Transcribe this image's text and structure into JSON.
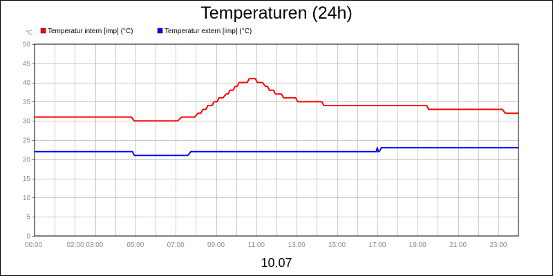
{
  "chart_data": {
    "type": "line",
    "title": "Temperaturen (24h)",
    "xlabel": "10.07",
    "ylabel": "°C",
    "ylim": [
      0,
      50
    ],
    "y_ticks": [
      "0",
      "5",
      "10",
      "15",
      "20",
      "25",
      "30",
      "35",
      "40",
      "45",
      "50"
    ],
    "x_tick_labels": [
      "00:00",
      "02:00 03:00",
      "05:00",
      "07:00",
      "09:00",
      "11:00",
      "13:00",
      "15:00",
      "17:00",
      "19:00",
      "21:00",
      "23:00"
    ],
    "x_tick_hours": [
      0,
      2.5,
      5,
      7,
      9,
      11,
      13,
      15,
      17,
      19,
      21,
      23
    ],
    "xlim_hours": [
      0,
      24
    ],
    "grid": true,
    "legend_position": "top-left",
    "series": [
      {
        "name": "Temperatur intern [imp] (°C)",
        "color": "#ff0000",
        "points": [
          [
            0,
            31
          ],
          [
            4.8,
            31
          ],
          [
            4.95,
            30
          ],
          [
            7.1,
            30
          ],
          [
            7.3,
            31
          ],
          [
            7.95,
            31
          ],
          [
            8.1,
            32
          ],
          [
            8.25,
            32
          ],
          [
            8.35,
            33
          ],
          [
            8.5,
            33
          ],
          [
            8.6,
            34
          ],
          [
            8.8,
            34
          ],
          [
            8.9,
            35
          ],
          [
            9.05,
            35
          ],
          [
            9.15,
            36
          ],
          [
            9.35,
            36
          ],
          [
            9.5,
            37
          ],
          [
            9.6,
            37
          ],
          [
            9.7,
            38
          ],
          [
            9.85,
            38
          ],
          [
            9.95,
            39
          ],
          [
            10.05,
            39
          ],
          [
            10.15,
            40
          ],
          [
            10.55,
            40
          ],
          [
            10.65,
            41
          ],
          [
            10.95,
            41
          ],
          [
            11.05,
            40
          ],
          [
            11.3,
            40
          ],
          [
            11.45,
            39
          ],
          [
            11.55,
            39
          ],
          [
            11.65,
            38
          ],
          [
            11.85,
            38
          ],
          [
            11.95,
            37
          ],
          [
            12.25,
            37
          ],
          [
            12.35,
            36
          ],
          [
            12.95,
            36
          ],
          [
            13.05,
            35
          ],
          [
            14.25,
            35
          ],
          [
            14.35,
            34
          ],
          [
            19.45,
            34
          ],
          [
            19.55,
            33
          ],
          [
            23.2,
            33
          ],
          [
            23.35,
            32
          ],
          [
            24,
            32
          ]
        ]
      },
      {
        "name": "Temperatur extern [imp] (°C)",
        "color": "#0000ff",
        "points": [
          [
            0,
            22
          ],
          [
            4.85,
            22
          ],
          [
            4.95,
            21
          ],
          [
            7.6,
            21
          ],
          [
            7.75,
            22
          ],
          [
            16.95,
            22
          ],
          [
            17.0,
            23
          ],
          [
            17.05,
            22
          ],
          [
            17.1,
            22
          ],
          [
            17.2,
            23
          ],
          [
            24,
            23
          ]
        ]
      }
    ]
  }
}
